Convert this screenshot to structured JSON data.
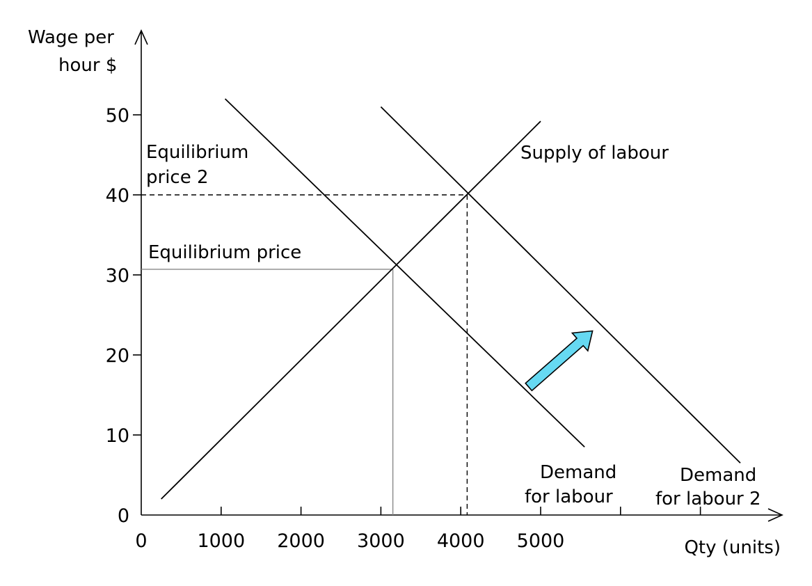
{
  "chart_data": {
    "type": "line",
    "title": "",
    "xlabel": "Qty (units)",
    "ylabel_lines": [
      "Wage per",
      "hour $"
    ],
    "xlim": [
      0,
      8000
    ],
    "ylim": [
      0,
      52
    ],
    "x_ticks": [
      0,
      1000,
      2000,
      3000,
      4000,
      5000,
      6000,
      7000
    ],
    "x_tick_labels": [
      "0",
      "1000",
      "2000",
      "3000",
      "4000",
      "5000",
      "",
      ""
    ],
    "y_ticks": [
      0,
      10,
      20,
      30,
      40,
      50
    ],
    "y_tick_labels": [
      "0",
      "10",
      "20",
      "30",
      "40",
      "50"
    ],
    "series": [
      {
        "name": "Supply of labour",
        "points": [
          [
            250,
            2
          ],
          [
            5000,
            49.2
          ]
        ]
      },
      {
        "name": "Demand for labour",
        "points": [
          [
            1050,
            52
          ],
          [
            5550,
            8.5
          ]
        ]
      },
      {
        "name": "Demand for labour 2",
        "points": [
          [
            3000,
            51
          ],
          [
            7500,
            6.5
          ]
        ]
      }
    ],
    "reference_lines": [
      {
        "label": "Equilibrium price",
        "style": "solid",
        "x": 3150,
        "y": 30.7
      },
      {
        "label_lines": [
          "Equilibrium",
          "price 2"
        ],
        "style": "dashed",
        "x": 4080,
        "y": 40
      }
    ],
    "annotations": [
      {
        "lines": [
          "Demand",
          "for labour"
        ],
        "refers_to": "Demand for labour"
      },
      {
        "lines": [
          "Demand",
          "for labour 2"
        ],
        "refers_to": "Demand for labour 2"
      },
      {
        "lines": [
          "Supply of labour"
        ],
        "refers_to": "Supply of labour"
      }
    ],
    "shift_arrow": {
      "from": [
        4850,
        16
      ],
      "to": [
        5650,
        23
      ],
      "color": "#66d9f2"
    },
    "grid": false,
    "legend": "none"
  }
}
